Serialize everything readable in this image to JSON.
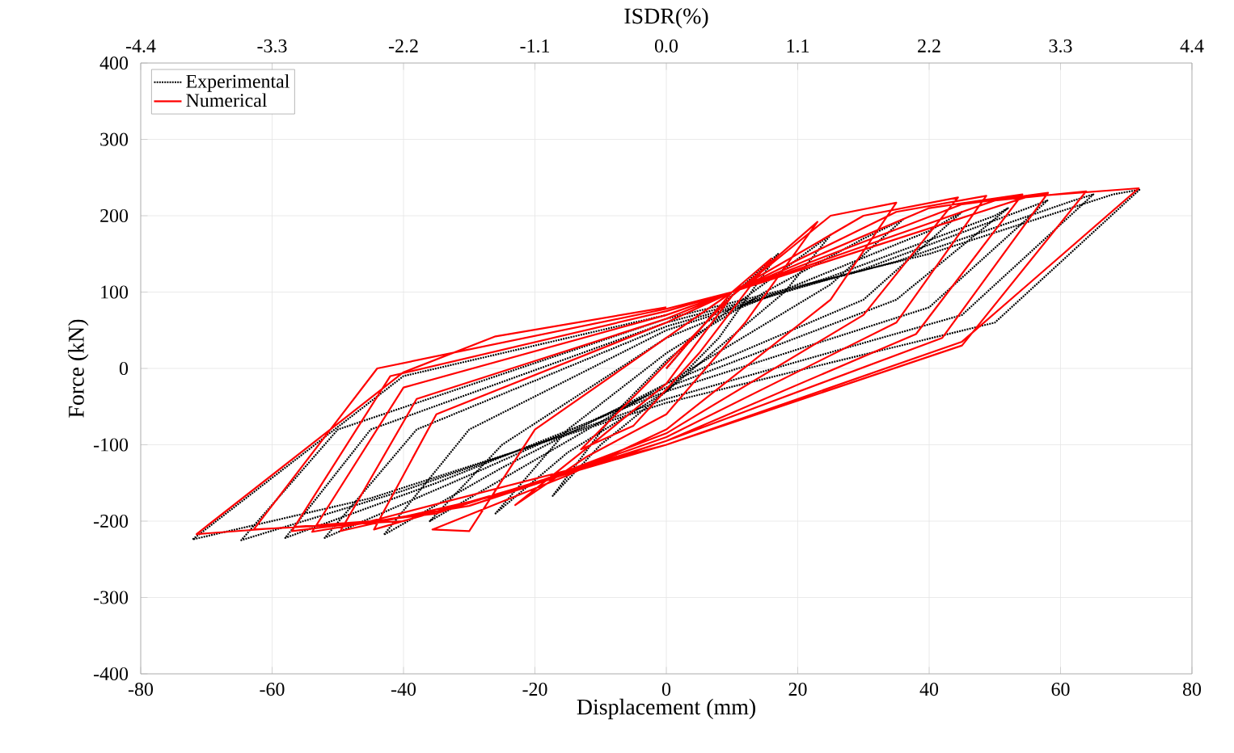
{
  "chart_data": {
    "type": "line",
    "xlabel": "Displacement (mm)",
    "ylabel": "Force (kN)",
    "x2label": "ISDR(%)",
    "xlim": [
      -80,
      80
    ],
    "ylim": [
      -400,
      400
    ],
    "xticks": [
      -80,
      -60,
      -40,
      -20,
      0,
      20,
      40,
      60,
      80
    ],
    "yticks": [
      -400,
      -300,
      -200,
      -100,
      0,
      100,
      200,
      300,
      400
    ],
    "x2lim": [
      -4.4,
      4.4
    ],
    "x2ticks": [
      -4.4,
      -3.3,
      -2.2,
      -1.1,
      {
        "value": 0,
        "label": "0.0"
      },
      1.1,
      2.2,
      3.3,
      4.4
    ],
    "grid": true,
    "legend": "top left",
    "marker": "none",
    "series": [
      {
        "name": "Experimental",
        "color": "#000000",
        "line_style": "dotted",
        "x": [
          0,
          8,
          17,
          8,
          0,
          -10,
          -17.3,
          -8,
          0,
          10,
          25,
          18,
          0,
          -15,
          -26,
          -15,
          0,
          15,
          30,
          36,
          25,
          0,
          -20,
          -36,
          -25,
          0,
          20,
          40,
          45,
          30,
          0,
          -25,
          -43,
          -30,
          0,
          25,
          50,
          52,
          35,
          0,
          -30,
          -52,
          -38,
          0,
          30,
          55,
          58,
          40,
          0,
          -35,
          -58,
          -45,
          0,
          35,
          62,
          65,
          45,
          0,
          -40,
          -64.7,
          -50,
          0,
          40,
          68,
          72,
          50,
          0,
          -45,
          -72.1,
          -55,
          -40,
          0
        ],
        "values": [
          0,
          80,
          150,
          40,
          -30,
          -100,
          -167,
          -60,
          10,
          80,
          175,
          100,
          -30,
          -110,
          -190,
          -80,
          20,
          100,
          170,
          195,
          110,
          -20,
          -120,
          -200,
          -100,
          40,
          110,
          180,
          205,
          90,
          -20,
          -130,
          -218,
          -80,
          50,
          120,
          200,
          210,
          90,
          -25,
          -140,
          -222,
          -80,
          55,
          130,
          210,
          220,
          80,
          -30,
          -150,
          -222,
          -80,
          60,
          140,
          220,
          228,
          70,
          -40,
          -160,
          -225,
          -80,
          65,
          150,
          228,
          234,
          60,
          -45,
          -170,
          -224,
          -110,
          -10,
          70
        ]
      },
      {
        "name": "Numerical",
        "color": "#ff0000",
        "line_style": "solid",
        "x": [
          0,
          10,
          16,
          5,
          -5,
          -13,
          -3,
          10,
          23,
          12,
          0,
          -12,
          -23,
          -10,
          0,
          10,
          25,
          35,
          25,
          0,
          -15,
          -35.6,
          -30,
          -20,
          0,
          10,
          30,
          44.4,
          30,
          0,
          -20,
          -44.5,
          -35,
          0,
          10,
          35,
          48.7,
          35,
          0,
          -25,
          -49.6,
          -38,
          0,
          10,
          40,
          54.2,
          38,
          0,
          -30,
          -53.9,
          -40,
          0,
          10,
          45,
          58.1,
          42,
          0,
          -35,
          -57,
          -42,
          0,
          10,
          50,
          63.9,
          45,
          0,
          -40,
          -62.8,
          -44,
          0,
          10,
          55,
          71.9,
          45,
          0,
          -45,
          -71.5,
          -40,
          -26,
          0
        ],
        "values": [
          0,
          100,
          144,
          20,
          -75,
          -106,
          -20,
          95,
          192,
          60,
          -60,
          -115,
          -179,
          -90,
          -20,
          95,
          200,
          217,
          90,
          -80,
          -140,
          -211,
          -213,
          -80,
          40,
          100,
          200,
          224,
          70,
          -85,
          -150,
          -211,
          -60,
          60,
          100,
          205,
          226,
          60,
          -90,
          -165,
          -213,
          -40,
          65,
          100,
          210,
          228,
          45,
          -95,
          -180,
          -214,
          -25,
          70,
          100,
          215,
          230,
          40,
          -95,
          -190,
          -213,
          -10,
          75,
          100,
          220,
          232,
          30,
          -100,
          -200,
          -211,
          0,
          78,
          100,
          225,
          236,
          35,
          -100,
          -200,
          -217,
          -5,
          42,
          80
        ]
      }
    ]
  }
}
